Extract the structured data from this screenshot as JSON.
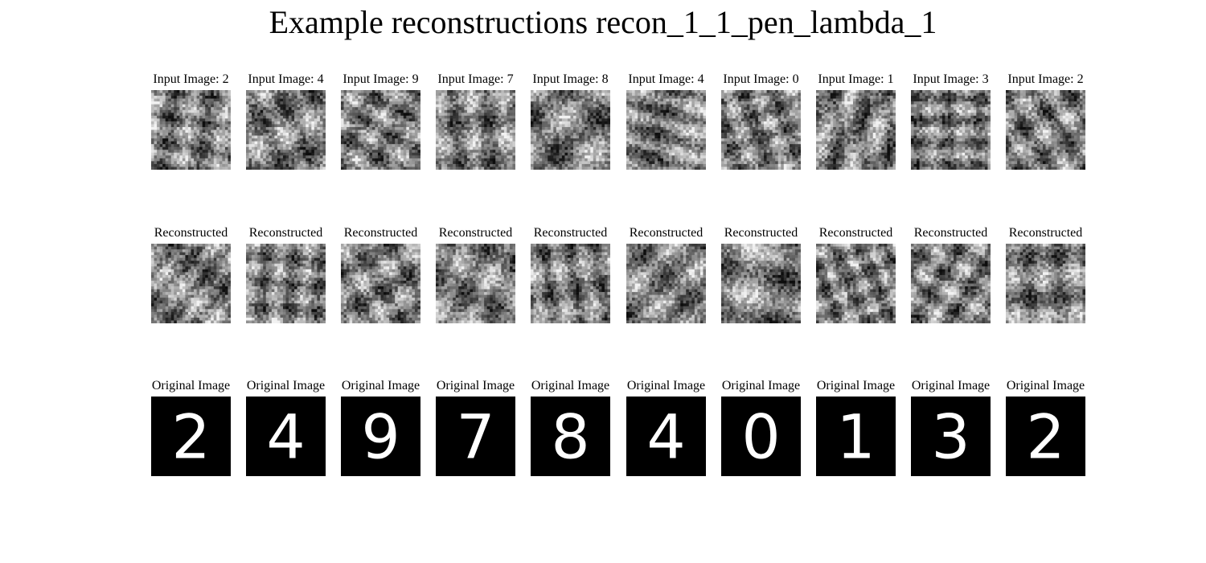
{
  "title": "Example reconstructions recon_1_1_pen_lambda_1",
  "rows": [
    {
      "name": "input",
      "labels": [
        "Input Image: 2",
        "Input Image: 4",
        "Input Image: 9",
        "Input Image: 7",
        "Input Image: 8",
        "Input Image: 4",
        "Input Image: 0",
        "Input Image: 1",
        "Input Image: 3",
        "Input Image: 2"
      ]
    },
    {
      "name": "reconstructed",
      "labels": [
        "Reconstructed",
        "Reconstructed",
        "Reconstructed",
        "Reconstructed",
        "Reconstructed",
        "Reconstructed",
        "Reconstructed",
        "Reconstructed",
        "Reconstructed",
        "Reconstructed"
      ]
    },
    {
      "name": "original",
      "labels": [
        "Original Image",
        "Original Image",
        "Original Image",
        "Original Image",
        "Original Image",
        "Original Image",
        "Original Image",
        "Original Image",
        "Original Image",
        "Original Image"
      ],
      "digits": [
        "2",
        "4",
        "9",
        "7",
        "8",
        "4",
        "0",
        "1",
        "3",
        "2"
      ]
    }
  ],
  "colors": {
    "background": "#ffffff",
    "digit_bg": "#000000",
    "digit_fg": "#ffffff"
  }
}
